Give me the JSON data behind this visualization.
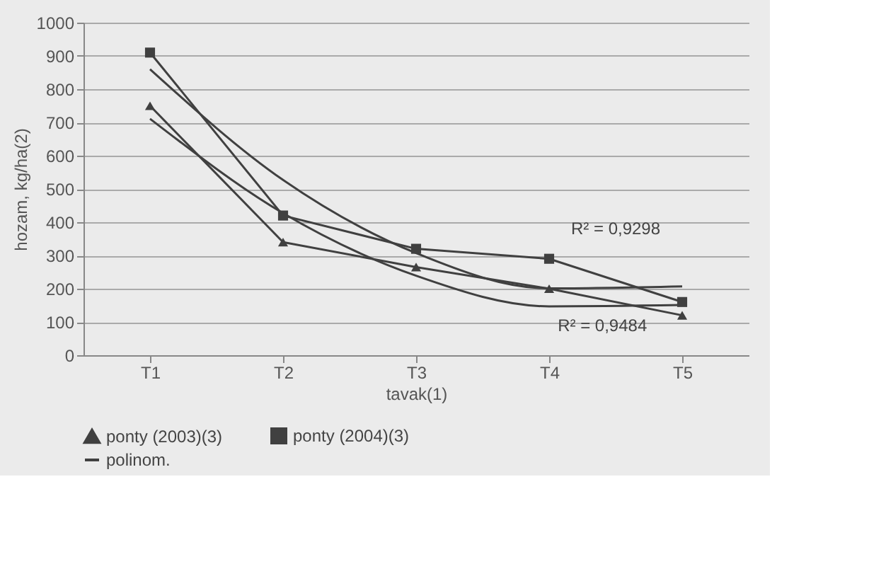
{
  "chart_data": {
    "type": "line",
    "xlabel": "tavak(1)",
    "ylabel": "hozam, kg/ha(2)",
    "categories": [
      "T1",
      "T2",
      "T3",
      "T4",
      "T5"
    ],
    "ylim": [
      0,
      1000
    ],
    "yticks": [
      0,
      100,
      200,
      300,
      400,
      500,
      600,
      700,
      800,
      900,
      1000
    ],
    "grid": "y",
    "legend": "bottom",
    "series": [
      {
        "name": "ponty (2003)(3)",
        "color": "#404040",
        "marker": "triangle",
        "values": [
          750,
          340,
          265,
          200,
          120
        ]
      },
      {
        "name": "ponty (2004)(3)",
        "color": "#404040",
        "marker": "square",
        "values": [
          910,
          420,
          320,
          290,
          160
        ]
      },
      {
        "name": "polinom.",
        "color": "#404040",
        "marker": "none",
        "values": [
          711,
          427,
          239,
          147,
          151
        ]
      },
      {
        "color": "#404040",
        "marker": "none",
        "values": [
          860,
          527,
          307,
          201,
          207
        ]
      }
    ],
    "annotations": [
      "R² = 0,9298",
      "R² = 0,9484"
    ]
  }
}
